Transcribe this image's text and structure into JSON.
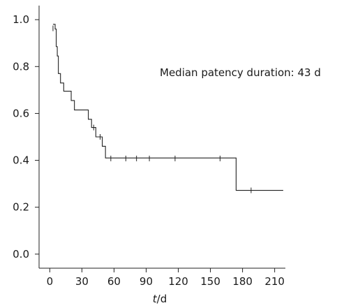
{
  "chart_data": {
    "type": "line",
    "subtype": "kaplan-meier-step",
    "annotation": "Median patency duration: 43 d",
    "xlabel_italic": "t",
    "xlabel_unit": "/d",
    "xlim": [
      -10,
      220
    ],
    "ylim": [
      -0.06,
      1.06
    ],
    "x_ticks": [
      0,
      30,
      60,
      90,
      120,
      150,
      180,
      210
    ],
    "y_ticks": [
      0.0,
      0.2,
      0.4,
      0.6,
      0.8,
      1.0
    ],
    "y_tick_labels": [
      "0.0",
      "0.2",
      "0.4",
      "0.6",
      "0.8",
      "1.0"
    ],
    "series": [
      {
        "step_points": [
          [
            3,
            0.98
          ],
          [
            5,
            0.96
          ],
          [
            6,
            0.885
          ],
          [
            7,
            0.845
          ],
          [
            8,
            0.77
          ],
          [
            10,
            0.73
          ],
          [
            13,
            0.695
          ],
          [
            20,
            0.655
          ],
          [
            23,
            0.615
          ],
          [
            36,
            0.575
          ],
          [
            39,
            0.54
          ],
          [
            43,
            0.5
          ],
          [
            49,
            0.46
          ],
          [
            52,
            0.41
          ],
          [
            174,
            0.272
          ],
          [
            218,
            0.272
          ]
        ],
        "censored": [
          [
            3,
            0.963
          ],
          [
            41,
            0.54
          ],
          [
            47,
            0.5
          ],
          [
            57,
            0.408
          ],
          [
            71,
            0.408
          ],
          [
            81,
            0.408
          ],
          [
            93,
            0.408
          ],
          [
            117,
            0.408
          ],
          [
            159,
            0.408
          ],
          [
            188,
            0.272
          ]
        ]
      }
    ]
  }
}
